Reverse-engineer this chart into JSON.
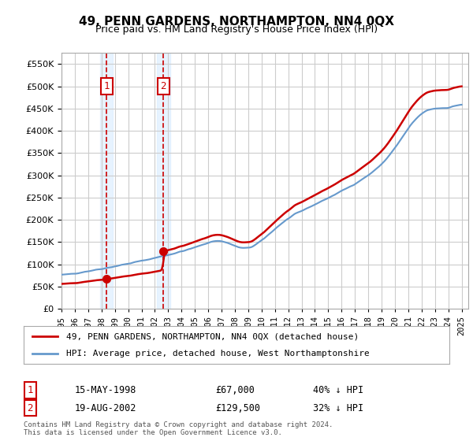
{
  "title": "49, PENN GARDENS, NORTHAMPTON, NN4 0QX",
  "subtitle": "Price paid vs. HM Land Registry's House Price Index (HPI)",
  "legend_line1": "49, PENN GARDENS, NORTHAMPTON, NN4 0QX (detached house)",
  "legend_line2": "HPI: Average price, detached house, West Northamptonshire",
  "transaction1_label": "1",
  "transaction1_date": "15-MAY-1998",
  "transaction1_price": "£67,000",
  "transaction1_hpi": "40% ↓ HPI",
  "transaction1_year": 1998.37,
  "transaction1_value": 67000,
  "transaction2_label": "2",
  "transaction2_date": "19-AUG-2002",
  "transaction2_price": "£129,500",
  "transaction2_hpi": "32% ↓ HPI",
  "transaction2_year": 2002.63,
  "transaction2_value": 129500,
  "footer": "Contains HM Land Registry data © Crown copyright and database right 2024.\nThis data is licensed under the Open Government Licence v3.0.",
  "ylim": [
    0,
    575000
  ],
  "xlim_start": 1995.0,
  "xlim_end": 2025.5,
  "price_color": "#cc0000",
  "hpi_color": "#6699cc",
  "background_color": "#ffffff",
  "plot_bg_color": "#ffffff",
  "grid_color": "#cccccc",
  "shade_color": "#ddeeff",
  "transaction_box_color": "#cc0000"
}
